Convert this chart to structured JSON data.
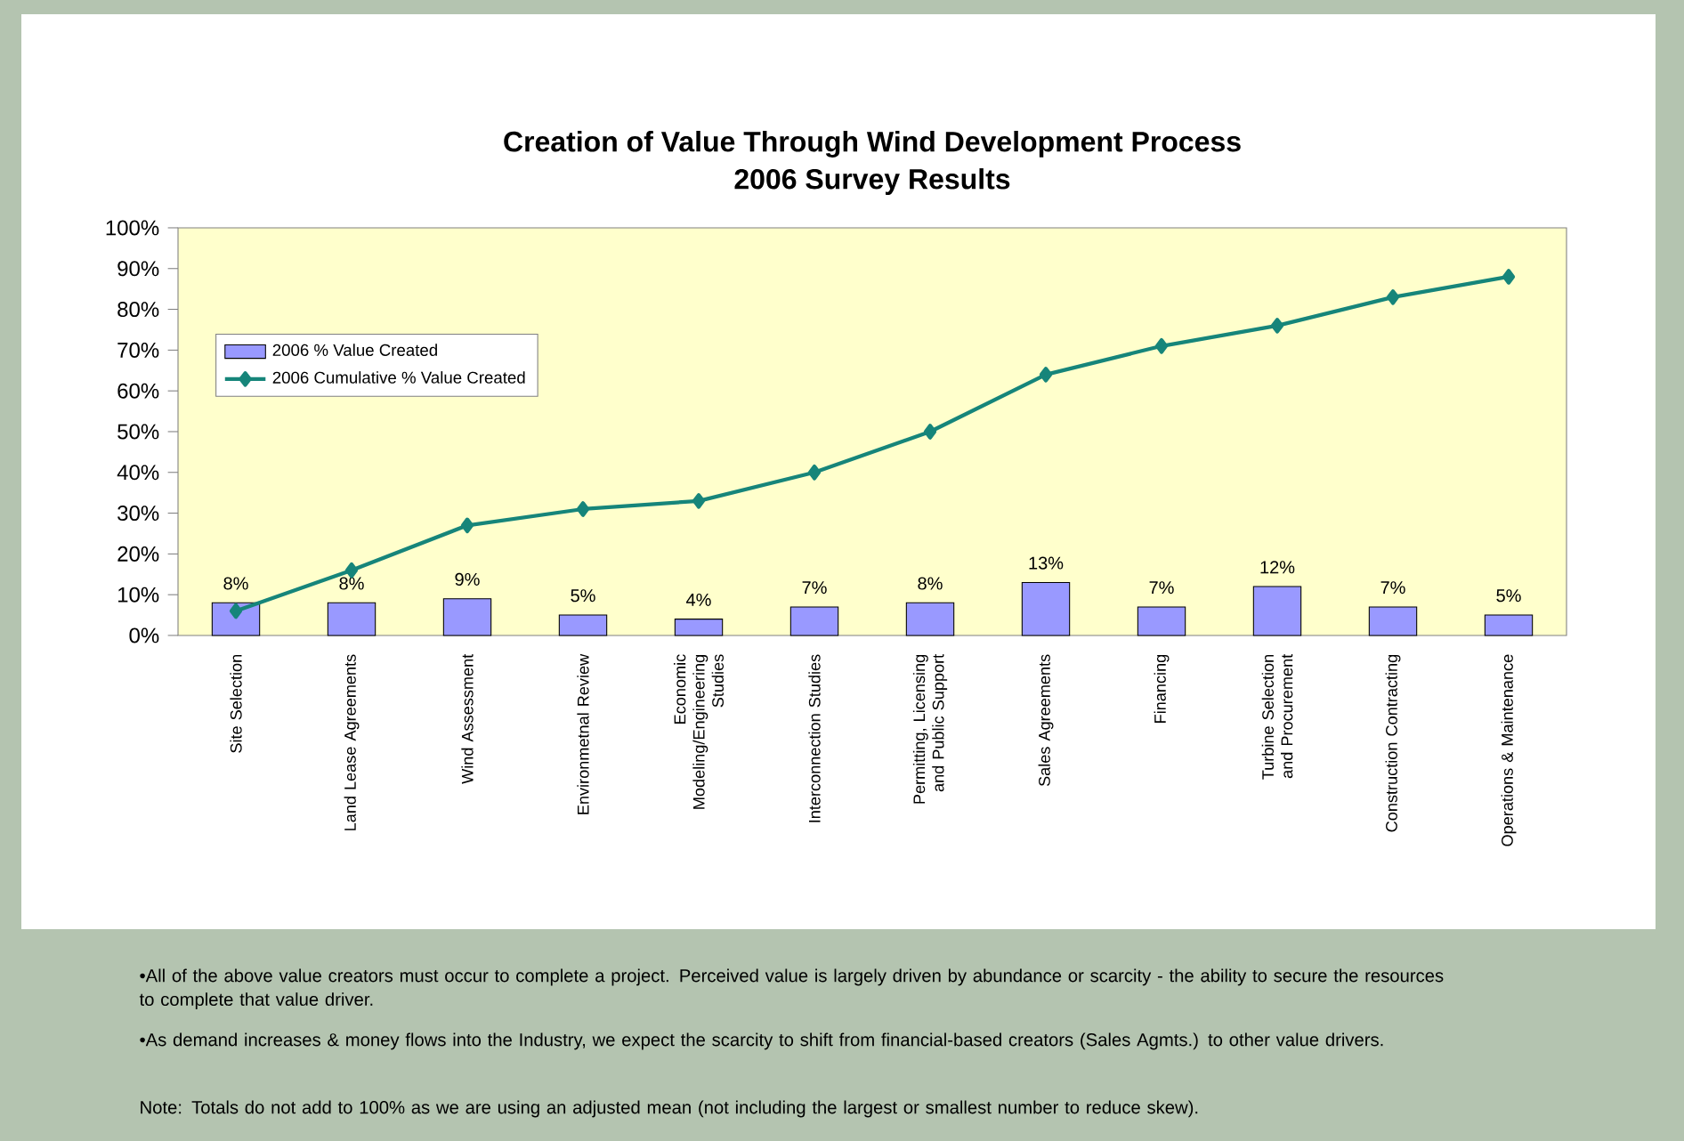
{
  "chart_data": {
    "type": "bar",
    "title": "Creation of Value Through Wind Development Process",
    "subtitle": "2006 Survey Results",
    "categories": [
      "Site Selection",
      "Land Lease Agreements",
      "Wind Assessment",
      "Environmetnal Review",
      "Economic Modeling/Engineering Studies",
      "Interconnection Studies",
      "Permitting, Licensing and Public Support",
      "Sales Agreements",
      "Financing",
      "Turbine Selection and Procurement",
      "Construction Contracting",
      "Operations & Maintenance"
    ],
    "series": [
      {
        "name": "2006 % Value Created",
        "color": "#9999ff",
        "values": [
          8,
          8,
          9,
          5,
          4,
          7,
          8,
          13,
          7,
          12,
          7,
          5
        ],
        "value_labels": [
          "8%",
          "8%",
          "9%",
          "5%",
          "4%",
          "7%",
          "8%",
          "13%",
          "7%",
          "12%",
          "7%",
          "5%"
        ]
      },
      {
        "name": "2006 Cumulative % Value Created",
        "type": "line",
        "color": "#16857a",
        "marker": "diamond",
        "values": [
          6,
          16,
          27,
          31,
          33,
          40,
          50,
          64,
          71,
          76,
          83,
          88
        ]
      }
    ],
    "ylim": [
      0,
      100
    ],
    "yticks": [
      {
        "value": 0,
        "label": "0%"
      },
      {
        "value": 10,
        "label": "10%"
      },
      {
        "value": 20,
        "label": "20%"
      },
      {
        "value": 30,
        "label": "30%"
      },
      {
        "value": 40,
        "label": "40%"
      },
      {
        "value": 50,
        "label": "50%"
      },
      {
        "value": 60,
        "label": "60%"
      },
      {
        "value": 70,
        "label": "70%"
      },
      {
        "value": 80,
        "label": "80%"
      },
      {
        "value": 90,
        "label": "90%"
      },
      {
        "value": 100,
        "label": "100%"
      }
    ],
    "legend": "top left",
    "annotations": [
      "•All of the above value creators must occur to complete a project.  Perceived value is largely driven by abundance or scarcity - the ability to secure the resources to complete that value driver.",
      "•As demand increases & money flows into the Industry, we expect the scarcity to shift from financial-based creators (Sales Agmts.) to other value drivers.",
      "Note:  Totals do not add to 100% as we are using an adjusted mean (not including the largest or smallest number to reduce skew)."
    ]
  }
}
